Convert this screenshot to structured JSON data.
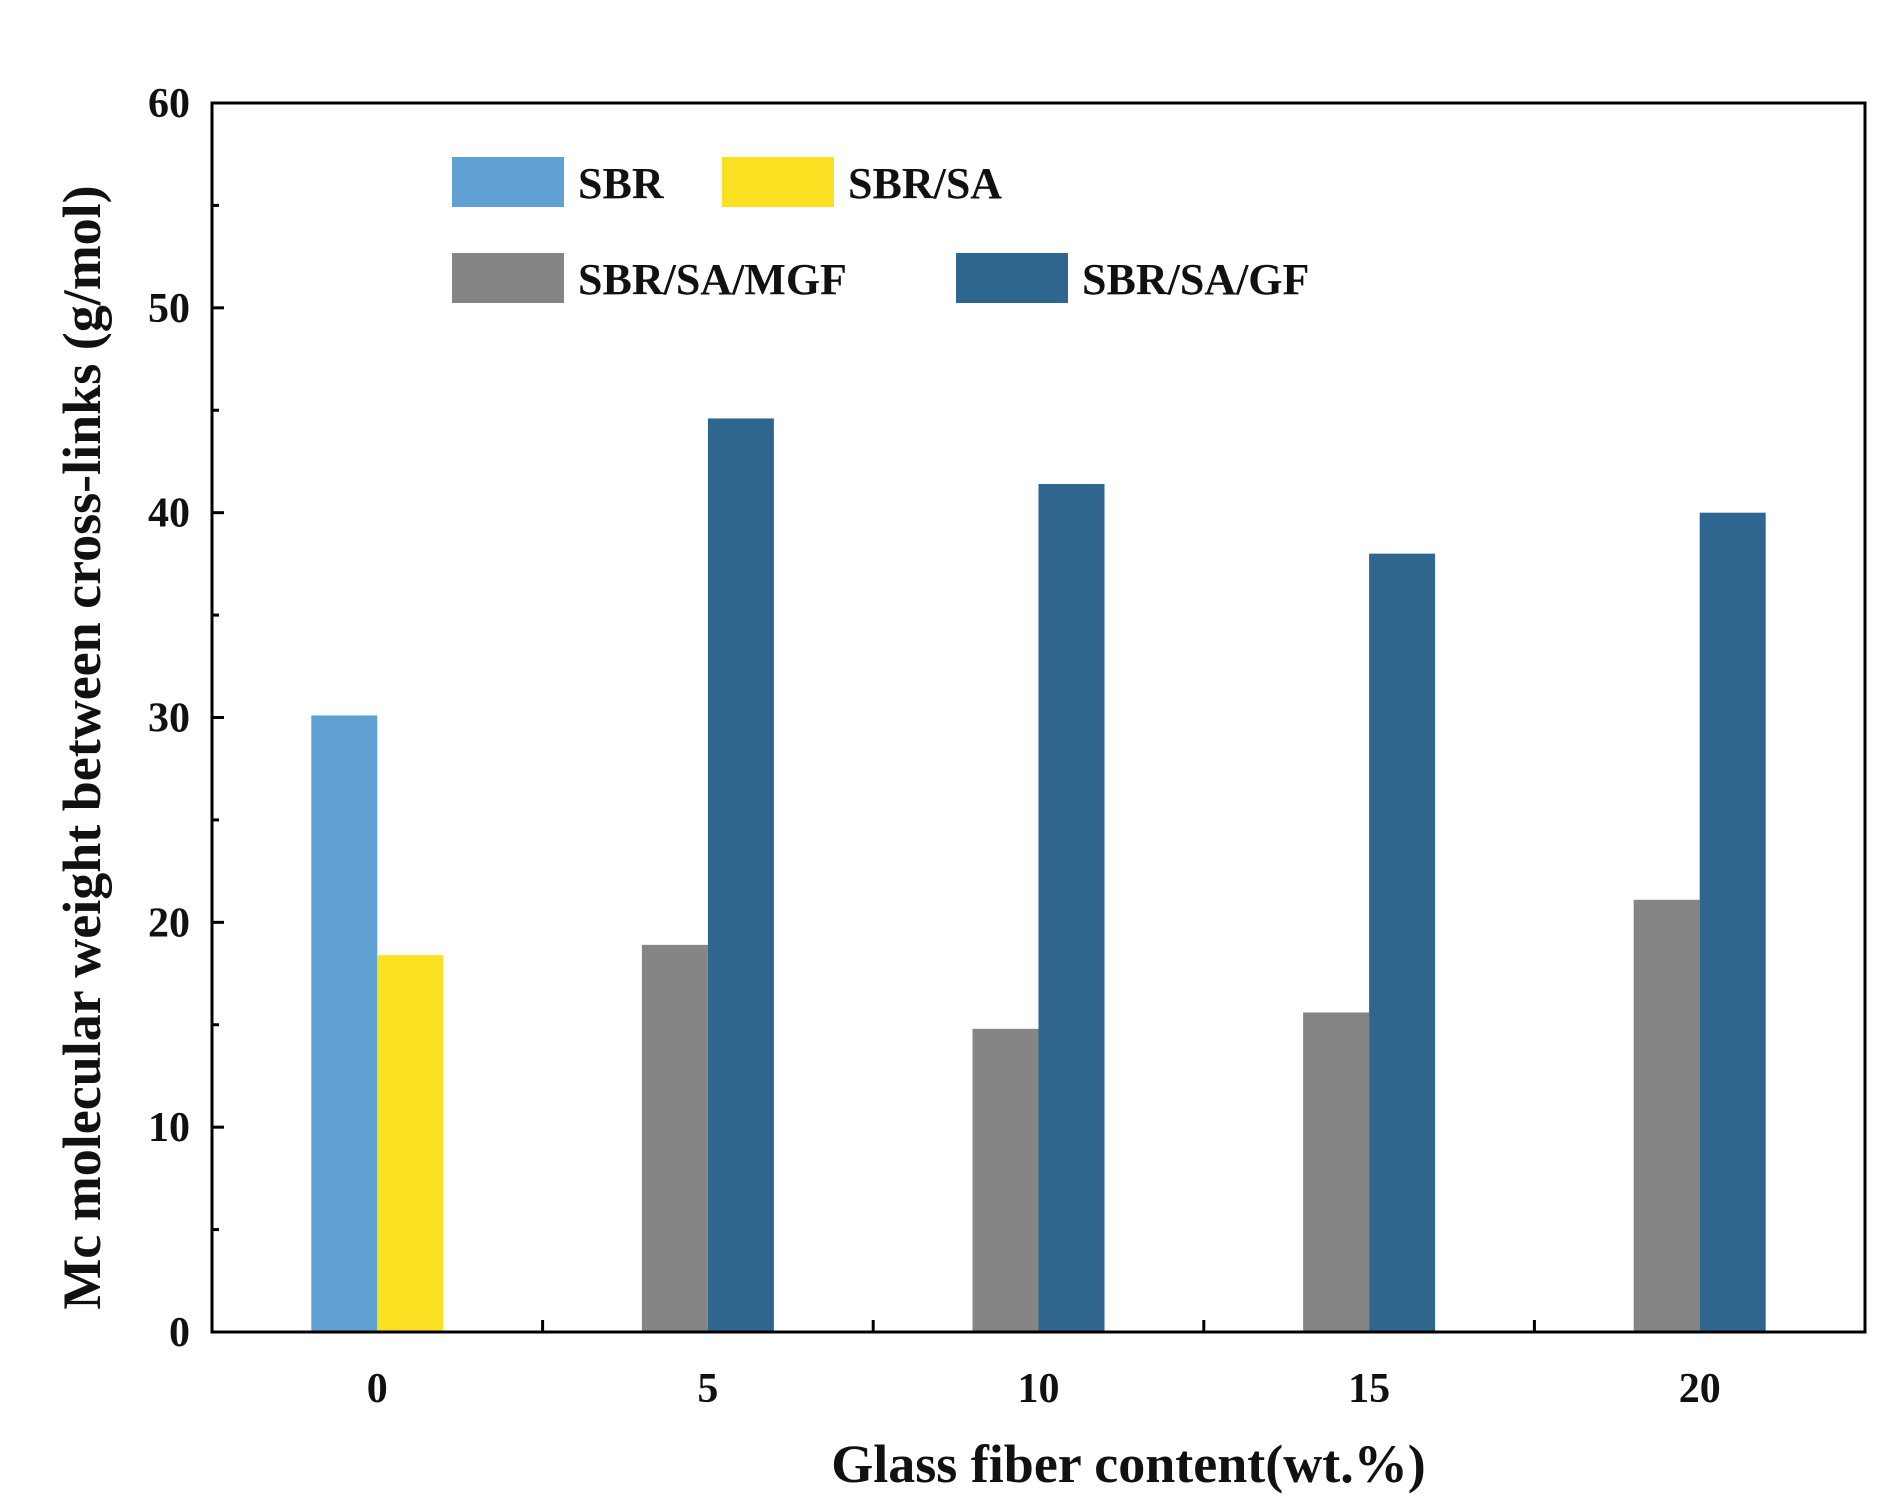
{
  "chart_data": {
    "type": "bar",
    "title": "",
    "xlabel": "Glass fiber content(wt.%)",
    "ylabel": "Mc  molecular weight between cross-links  (g/mol)",
    "ylim": [
      0,
      60
    ],
    "yticks": [
      0,
      10,
      20,
      30,
      40,
      50,
      60
    ],
    "categories": [
      "0",
      "5",
      "10",
      "15",
      "20"
    ],
    "grid": false,
    "legend_position": "top-left",
    "series": [
      {
        "name": "SBR",
        "color": "#5fa1d2",
        "values": [
          30.1,
          null,
          null,
          null,
          null
        ]
      },
      {
        "name": "SBR/SA",
        "color": "#fbe122",
        "values": [
          18.4,
          null,
          null,
          null,
          null
        ]
      },
      {
        "name": "SBR/SA/MGF",
        "color": "#858585",
        "values": [
          null,
          18.9,
          14.8,
          15.6,
          21.1
        ]
      },
      {
        "name": "SBR/SA/GF",
        "color": "#2f6690",
        "values": [
          null,
          44.6,
          41.4,
          38.0,
          40.0
        ]
      }
    ]
  }
}
